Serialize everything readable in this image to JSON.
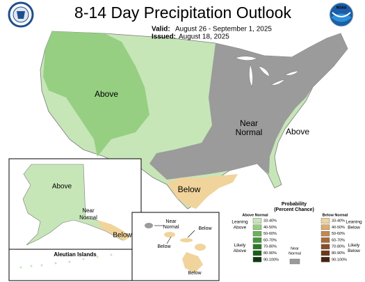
{
  "header": {
    "title": "8-14 Day Precipitation Outlook",
    "valid_label": "Valid:",
    "valid": "August 26 - September 1, 2025",
    "issued_label": "Issued:",
    "issued": "August 18, 2025",
    "noaa_logo": "NOAA"
  },
  "conus": {
    "labels": [
      {
        "lines": [
          "Above"
        ]
      },
      {
        "lines": [
          "Near",
          "Normal"
        ]
      },
      {
        "lines": [
          "Above"
        ]
      },
      {
        "lines": [
          "Below"
        ]
      }
    ]
  },
  "alaska": {
    "labels": [
      {
        "lines": [
          "Above"
        ]
      },
      {
        "lines": [
          "Near",
          "Normal"
        ]
      },
      {
        "lines": [
          "Below"
        ]
      }
    ],
    "aleutian": "Aleutian Islands"
  },
  "hawaii": {
    "labels": [
      {
        "lines": [
          "Near",
          "Normal"
        ]
      },
      {
        "lines": [
          "Below"
        ]
      },
      {
        "lines": [
          "Below"
        ]
      },
      {
        "lines": [
          "Below"
        ]
      }
    ]
  },
  "legend": {
    "title": [
      "Probability",
      "(Percent Chance)"
    ],
    "above_header": "Above Normal",
    "below_header": "Below Normal",
    "leaning_above": [
      "Leaning",
      "Above"
    ],
    "likely_above": [
      "Likely",
      "Above"
    ],
    "near": {
      "lines": [
        "Near",
        "Normal"
      ],
      "color": "#9b9b9b"
    },
    "leaning_below": [
      "Leaning",
      "Below"
    ],
    "likely_below": [
      "Likely",
      "Below"
    ],
    "above": [
      {
        "label": "33-40%",
        "color": "#c7e6b8"
      },
      {
        "label": "40-50%",
        "color": "#96cf82"
      },
      {
        "label": "50-60%",
        "color": "#69b556"
      },
      {
        "label": "60-70%",
        "color": "#45973a"
      },
      {
        "label": "70-80%",
        "color": "#2c7a26"
      },
      {
        "label": "80-90%",
        "color": "#1b5c18"
      },
      {
        "label": "90-100%",
        "color": "#0c3a0c"
      }
    ],
    "below": [
      {
        "label": "33-40%",
        "color": "#f0d49c"
      },
      {
        "label": "40-50%",
        "color": "#ddad6e"
      },
      {
        "label": "50-60%",
        "color": "#c6894c"
      },
      {
        "label": "60-70%",
        "color": "#a86a36"
      },
      {
        "label": "70-80%",
        "color": "#8a4e25"
      },
      {
        "label": "80-90%",
        "color": "#6b3819"
      },
      {
        "label": "90-100%",
        "color": "#47230f"
      }
    ]
  }
}
